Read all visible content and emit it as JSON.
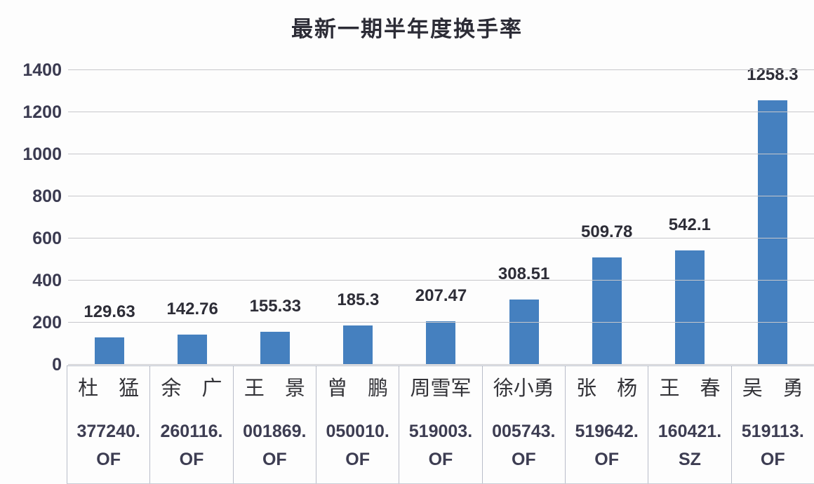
{
  "chart_data": {
    "type": "bar",
    "title": "最新一期半年度换手率",
    "categories": [
      {
        "name": "杜　猛",
        "code_main": "377240.",
        "code_suffix": "OF"
      },
      {
        "name": "余　广",
        "code_main": "260116.",
        "code_suffix": "OF"
      },
      {
        "name": "王　景",
        "code_main": "001869.",
        "code_suffix": "OF"
      },
      {
        "name": "曾　鹏",
        "code_main": "050010.",
        "code_suffix": "OF"
      },
      {
        "name": "周雪军",
        "code_main": "519003.",
        "code_suffix": "OF"
      },
      {
        "name": "徐小勇",
        "code_main": "005743.",
        "code_suffix": "OF"
      },
      {
        "name": "张　杨",
        "code_main": "519642.",
        "code_suffix": "OF"
      },
      {
        "name": "王　春",
        "code_main": "160421.",
        "code_suffix": "SZ"
      },
      {
        "name": "吴　勇",
        "code_main": "519113.",
        "code_suffix": "OF"
      }
    ],
    "values": [
      129.63,
      142.76,
      155.33,
      185.3,
      207.47,
      308.51,
      509.78,
      542.1,
      1258.3
    ],
    "value_labels": [
      "129.63",
      "142.76",
      "155.33",
      "185.3",
      "207.47",
      "308.51",
      "509.78",
      "542.1",
      "1258.3"
    ],
    "xlabel": "",
    "ylabel": "",
    "ylim": [
      0,
      1400
    ],
    "y_ticks": [
      0,
      200,
      400,
      600,
      800,
      1000,
      1200,
      1400
    ],
    "grid": true,
    "legend": "none",
    "bar_color": "#4580BF",
    "gridline_color": "#c7c7cb",
    "background_color": "#fdfdfd"
  }
}
